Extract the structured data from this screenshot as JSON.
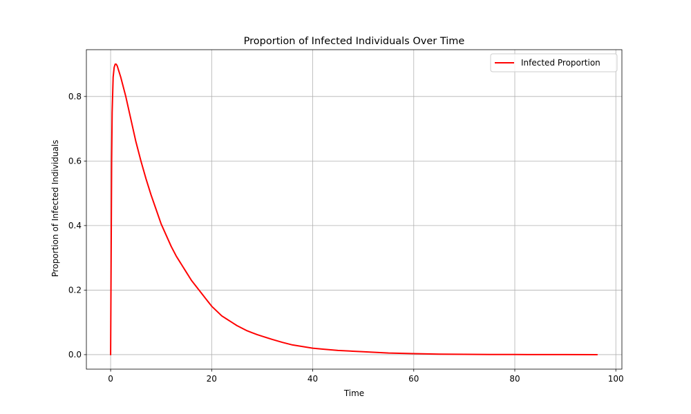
{
  "chart_data": {
    "type": "line",
    "title": "Proportion of Infected Individuals Over Time",
    "xlabel": "Time",
    "ylabel": "Proportion of Infected Individuals",
    "xlim": [
      -4.8,
      101.2
    ],
    "ylim": [
      -0.045,
      0.945
    ],
    "x_ticks": [
      0,
      20,
      40,
      60,
      80,
      100
    ],
    "y_ticks": [
      0.0,
      0.2,
      0.4,
      0.6,
      0.8
    ],
    "x_tick_labels": [
      "0",
      "20",
      "40",
      "60",
      "80",
      "100"
    ],
    "y_tick_labels": [
      "0.0",
      "0.2",
      "0.4",
      "0.6",
      "0.8"
    ],
    "grid": true,
    "legend_position": "top-right",
    "series": [
      {
        "name": "Infected Proportion",
        "color": "#ff0000",
        "x": [
          0,
          0.1,
          0.2,
          0.3,
          0.5,
          0.7,
          0.9,
          1.1,
          1.3,
          1.6,
          2,
          2.5,
          3,
          4,
          5,
          6,
          7,
          8,
          9,
          10,
          11,
          12,
          13,
          14,
          15,
          16,
          17,
          18,
          19,
          20,
          21,
          22,
          23,
          24,
          25,
          26,
          27,
          28,
          29,
          30,
          32,
          34,
          36,
          38,
          40,
          42,
          45,
          50,
          55,
          60,
          65,
          70,
          75,
          80,
          85,
          90,
          96.3
        ],
        "y": [
          0.0,
          0.3,
          0.6,
          0.75,
          0.86,
          0.89,
          0.9,
          0.9,
          0.895,
          0.88,
          0.86,
          0.83,
          0.8,
          0.73,
          0.66,
          0.6,
          0.545,
          0.495,
          0.45,
          0.405,
          0.37,
          0.335,
          0.305,
          0.28,
          0.255,
          0.23,
          0.21,
          0.19,
          0.17,
          0.15,
          0.135,
          0.12,
          0.11,
          0.1,
          0.09,
          0.082,
          0.074,
          0.068,
          0.062,
          0.057,
          0.047,
          0.038,
          0.03,
          0.025,
          0.02,
          0.017,
          0.013,
          0.009,
          0.005,
          0.003,
          0.0015,
          0.001,
          0.0005,
          0.0003,
          0.0002,
          0.0001,
          0.0
        ]
      }
    ]
  }
}
